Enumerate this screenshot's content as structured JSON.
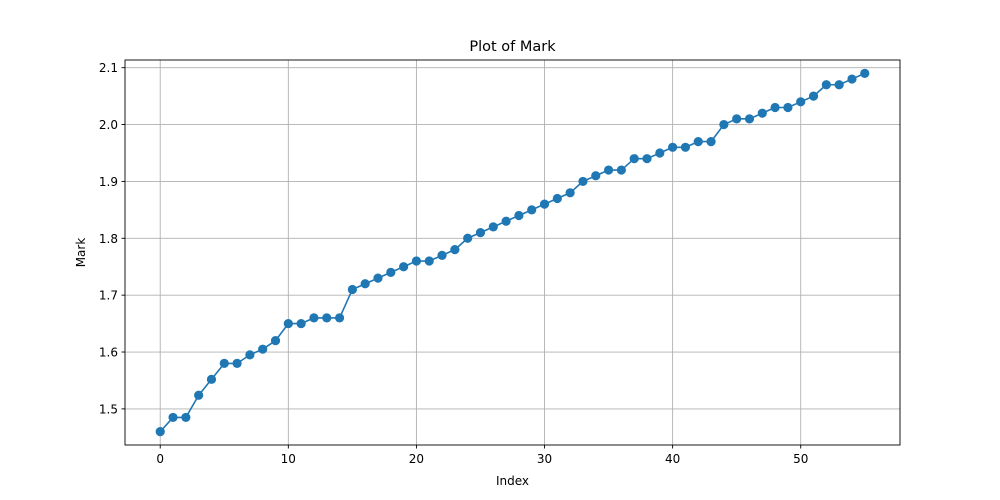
{
  "chart_data": {
    "type": "line",
    "title": "Plot of Mark",
    "xlabel": "Index",
    "ylabel": "Mark",
    "xlim": [
      -2.75,
      57.75
    ],
    "ylim": [
      1.4365,
      2.1135
    ],
    "xticks": [
      0,
      10,
      20,
      30,
      40,
      50
    ],
    "yticks": [
      1.5,
      1.6,
      1.7,
      1.8,
      1.9,
      2.0,
      2.1
    ],
    "ytick_labels": [
      "1.5",
      "1.6",
      "1.7",
      "1.8",
      "1.9",
      "2.0",
      "2.1"
    ],
    "grid": true,
    "marker": "circle",
    "color": "#1f77b4",
    "series": [
      {
        "x": [
          0,
          1,
          2,
          3,
          4,
          5,
          6,
          7,
          8,
          9,
          10,
          11,
          12,
          13,
          14,
          15,
          16,
          17,
          18,
          19,
          20,
          21,
          22,
          23,
          24,
          25,
          26,
          27,
          28,
          29,
          30,
          31,
          32,
          33,
          34,
          35,
          36,
          37,
          38,
          39,
          40,
          41,
          42,
          43,
          44,
          45,
          46,
          47,
          48,
          49,
          50,
          51,
          52,
          53,
          54,
          55
        ],
        "values": [
          1.46,
          1.485,
          1.485,
          1.524,
          1.552,
          1.58,
          1.58,
          1.595,
          1.605,
          1.62,
          1.65,
          1.65,
          1.66,
          1.66,
          1.66,
          1.71,
          1.72,
          1.73,
          1.74,
          1.75,
          1.76,
          1.76,
          1.77,
          1.78,
          1.8,
          1.81,
          1.82,
          1.83,
          1.84,
          1.85,
          1.86,
          1.87,
          1.88,
          1.9,
          1.91,
          1.92,
          1.92,
          1.94,
          1.94,
          1.95,
          1.96,
          1.96,
          1.97,
          1.97,
          2.0,
          2.01,
          2.01,
          2.02,
          2.03,
          2.03,
          2.04,
          2.05,
          2.07,
          2.07,
          2.08,
          2.09
        ]
      }
    ]
  }
}
